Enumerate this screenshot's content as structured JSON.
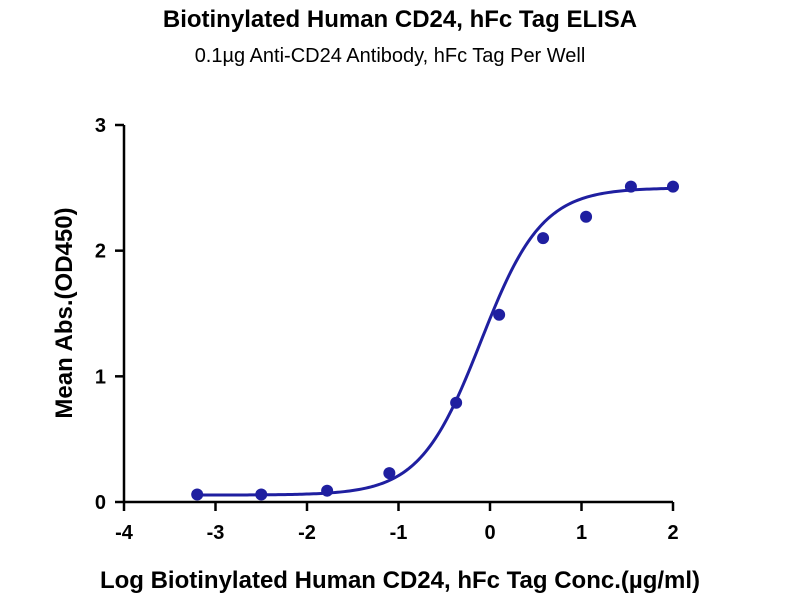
{
  "chart_data": {
    "type": "scatter",
    "title": "Biotinylated Human CD24, hFc Tag ELISA",
    "subtitle": "0.1µg Anti-CD24 Antibody, hFc Tag Per Well",
    "xlabel": "Log Biotinylated Human CD24, hFc Tag Conc.(µg/ml)",
    "ylabel": "Mean Abs.(OD450)",
    "xlim": [
      -4,
      2
    ],
    "ylim": [
      0,
      3
    ],
    "x_ticks": [
      "-4",
      "-3",
      "-2",
      "-1",
      "0",
      "1",
      "2"
    ],
    "y_ticks": [
      "0",
      "1",
      "2",
      "3"
    ],
    "grid": false,
    "legend": "none",
    "color": "#1f1fa0",
    "series": [
      {
        "x": [
          -3.2,
          -2.5,
          -1.78,
          -1.1,
          -0.37,
          0.1,
          0.58,
          1.05,
          1.54,
          2.0
        ],
        "y": [
          0.06,
          0.06,
          0.09,
          0.23,
          0.79,
          1.49,
          2.1,
          2.27,
          2.51,
          2.51
        ]
      }
    ],
    "fit": {
      "model": "4PL",
      "bottom": 0.055,
      "top": 2.5,
      "log_ec50": -0.1,
      "hill_slope": 1.3
    }
  }
}
